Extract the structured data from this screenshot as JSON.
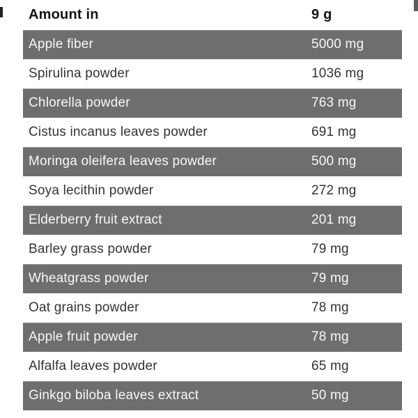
{
  "table": {
    "header": {
      "label": "Amount in",
      "value": "9 g"
    },
    "rows": [
      {
        "name": "Apple fiber",
        "value": "5000 mg",
        "highlighted": true
      },
      {
        "name": "Spirulina powder",
        "value": "1036 mg",
        "highlighted": false
      },
      {
        "name": "Chlorella powder",
        "value": "763 mg",
        "highlighted": true
      },
      {
        "name": "Cistus incanus leaves powder",
        "value": "691 mg",
        "highlighted": false
      },
      {
        "name": "Moringa oleifera leaves powder",
        "value": "500 mg",
        "highlighted": true
      },
      {
        "name": "Soya lecithin powder",
        "value": "272 mg",
        "highlighted": false
      },
      {
        "name": "Elderberry fruit extract",
        "value": "201 mg",
        "highlighted": true
      },
      {
        "name": "Barley grass powder",
        "value": "79 mg",
        "highlighted": false
      },
      {
        "name": "Wheatgrass powder",
        "value": "79 mg",
        "highlighted": true
      },
      {
        "name": "Oat grains powder",
        "value": "78 mg",
        "highlighted": false
      },
      {
        "name": "Apple fruit powder",
        "value": "78 mg",
        "highlighted": true
      },
      {
        "name": "Alfalfa leaves powder",
        "value": "65 mg",
        "highlighted": false
      },
      {
        "name": "Ginkgo biloba leaves extract",
        "value": "50 mg",
        "highlighted": true
      }
    ]
  },
  "colors": {
    "band_background": "#6e6e6e",
    "band_text": "#f8f8f8",
    "row_text": "#333333",
    "header_text": "#141414",
    "page_background": "#ffffff"
  }
}
